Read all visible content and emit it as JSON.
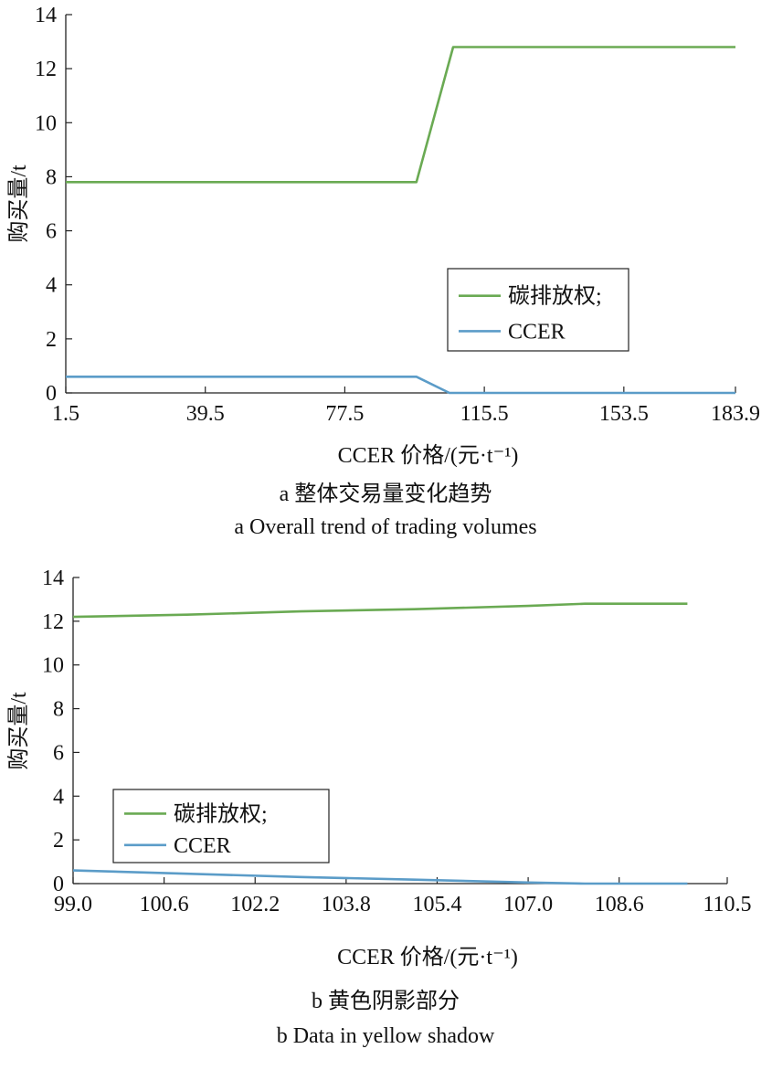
{
  "chart_data": [
    {
      "type": "line",
      "xlabel": "CCER 价格/(元·t⁻¹)",
      "ylabel": "购买量/t",
      "caption_cn": "a  整体交易量变化趋势",
      "caption_en": "a  Overall  trend of  trading volumes",
      "xlim": [
        1.5,
        183.9
      ],
      "ylim": [
        0,
        14
      ],
      "xticks": [
        "1.5",
        "39.5",
        "77.5",
        "115.5",
        "153.5",
        "183.9"
      ],
      "yticks": [
        "0",
        "2",
        "4",
        "6",
        "8",
        "10",
        "12",
        "14"
      ],
      "legend_position": "center-right",
      "series": [
        {
          "name": "碳排放权;",
          "color": "#6aaa53",
          "x": [
            1.5,
            97,
            107,
            183.9
          ],
          "y": [
            7.8,
            7.8,
            12.8,
            12.8
          ]
        },
        {
          "name": "CCER",
          "color": "#5b9cc8",
          "x": [
            1.5,
            97,
            106,
            183.9
          ],
          "y": [
            0.6,
            0.6,
            0,
            0
          ]
        }
      ]
    },
    {
      "type": "line",
      "xlabel": "CCER 价格/(元·t⁻¹)",
      "ylabel": "购买量/t",
      "caption_cn": "b  黄色阴影部分",
      "caption_en": "b  Data in yellow shadow",
      "xlim": [
        99.0,
        110.5
      ],
      "ylim": [
        0,
        14
      ],
      "xticks": [
        "99.0",
        "100.6",
        "102.2",
        "103.8",
        "105.4",
        "107.0",
        "108.6",
        "110.5"
      ],
      "yticks": [
        "0",
        "2",
        "4",
        "6",
        "8",
        "10",
        "12",
        "14"
      ],
      "legend_position": "bottom-left",
      "series": [
        {
          "name": "碳排放权;",
          "color": "#6aaa53",
          "x": [
            99.0,
            101.0,
            103.0,
            105.0,
            107.0,
            108.0,
            109.0,
            109.8
          ],
          "y": [
            12.2,
            12.3,
            12.45,
            12.55,
            12.7,
            12.8,
            12.8,
            12.8
          ]
        },
        {
          "name": "CCER",
          "color": "#5b9cc8",
          "x": [
            99.0,
            101.0,
            103.0,
            105.0,
            107.0,
            108.0,
            109.0,
            109.8
          ],
          "y": [
            0.6,
            0.45,
            0.3,
            0.18,
            0.05,
            0.0,
            0.0,
            0.0
          ]
        }
      ]
    }
  ]
}
